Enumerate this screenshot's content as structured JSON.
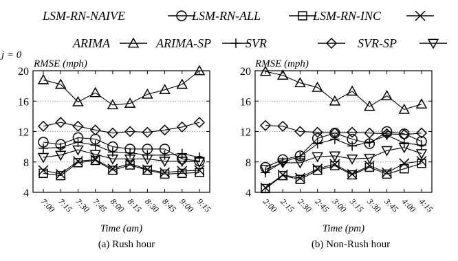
{
  "legend": [
    {
      "label": "LSM-RN-NAIVE",
      "marker": "circle"
    },
    {
      "label": "LSM-RN-ALL",
      "marker": "square"
    },
    {
      "label": "LSM-RN-INC",
      "marker": "x"
    },
    {
      "label": "ARIMA",
      "marker": "triangle-up"
    },
    {
      "label": "ARIMA-SP",
      "marker": "plus"
    },
    {
      "label": "SVR",
      "marker": "diamond"
    },
    {
      "label": "SVR-SP",
      "marker": "triangle-down"
    }
  ],
  "stray_text": "j = 0",
  "chart_data": [
    {
      "type": "line",
      "caption": "(a) Rush hour",
      "ylabel": "RMSE (mph)",
      "xlabel": "Time (am)",
      "ylim": [
        4,
        20
      ],
      "yticks": [
        4,
        8,
        12,
        16,
        20
      ],
      "grid": "horizontal dotted",
      "categories": [
        "7:00",
        "7:15",
        "7:30",
        "7:45",
        "8:00",
        "8:15",
        "8:30",
        "8:45",
        "9:00",
        "9:15"
      ],
      "series": [
        {
          "name": "LSM-RN-NAIVE",
          "values": [
            10.6,
            10.3,
            11.2,
            11.0,
            10.0,
            9.7,
            9.7,
            9.7,
            8.4,
            8.1
          ]
        },
        {
          "name": "LSM-RN-ALL",
          "values": [
            6.5,
            6.2,
            7.9,
            8.2,
            6.9,
            7.6,
            6.9,
            6.4,
            6.5,
            6.6
          ]
        },
        {
          "name": "LSM-RN-INC",
          "values": [
            6.9,
            6.4,
            8.1,
            8.3,
            7.1,
            7.8,
            7.0,
            6.6,
            6.8,
            6.9
          ]
        },
        {
          "name": "ARIMA",
          "values": [
            18.8,
            18.2,
            15.9,
            17.1,
            15.5,
            15.7,
            16.9,
            17.5,
            18.2,
            20.0
          ]
        },
        {
          "name": "ARIMA-SP",
          "values": [
            9.8,
            9.9,
            10.6,
            10.2,
            9.3,
            9.2,
            8.9,
            8.9,
            9.1,
            8.6
          ]
        },
        {
          "name": "SVR",
          "values": [
            12.7,
            13.2,
            12.7,
            12.2,
            11.8,
            12.0,
            11.9,
            12.2,
            12.6,
            13.2
          ]
        },
        {
          "name": "SVR-SP",
          "values": [
            8.6,
            8.9,
            9.6,
            9.0,
            8.4,
            8.4,
            8.4,
            8.1,
            8.1,
            8.0
          ]
        }
      ]
    },
    {
      "type": "line",
      "caption": "(b) Non-Rush hour",
      "ylabel": "RMSE (mph)",
      "xlabel": "Time (pm)",
      "ylim": [
        4,
        20
      ],
      "yticks": [
        4,
        8,
        12,
        16,
        20
      ],
      "grid": "horizontal dotted",
      "categories": [
        "2:00",
        "2:15",
        "2:30",
        "2:45",
        "3:00",
        "3:15",
        "3:30",
        "3:45",
        "4:00",
        "4:15"
      ],
      "series": [
        {
          "name": "LSM-RN-NAIVE",
          "values": [
            7.3,
            8.3,
            8.8,
            11.1,
            11.8,
            11.0,
            10.4,
            12.0,
            11.7,
            10.7
          ]
        },
        {
          "name": "LSM-RN-ALL",
          "values": [
            4.5,
            6.2,
            5.7,
            6.9,
            7.5,
            6.3,
            7.3,
            6.4,
            7.1,
            7.8
          ]
        },
        {
          "name": "LSM-RN-INC",
          "values": [
            4.6,
            6.3,
            5.9,
            7.1,
            7.7,
            6.4,
            7.5,
            6.6,
            7.8,
            8.1
          ]
        },
        {
          "name": "ARIMA",
          "values": [
            19.9,
            19.4,
            18.4,
            17.8,
            16.0,
            17.3,
            15.3,
            16.7,
            14.9,
            15.6
          ]
        },
        {
          "name": "ARIMA-SP",
          "values": [
            6.6,
            8.0,
            8.7,
            10.4,
            11.0,
            10.1,
            10.6,
            11.5,
            10.5,
            10.2
          ]
        },
        {
          "name": "SVR",
          "values": [
            12.8,
            12.7,
            12.0,
            11.9,
            11.8,
            11.9,
            11.8,
            11.7,
            11.6,
            11.8
          ]
        },
        {
          "name": "SVR-SP",
          "values": [
            7.0,
            7.9,
            7.9,
            8.7,
            8.8,
            8.4,
            8.5,
            9.5,
            9.9,
            9.1
          ]
        }
      ]
    }
  ]
}
